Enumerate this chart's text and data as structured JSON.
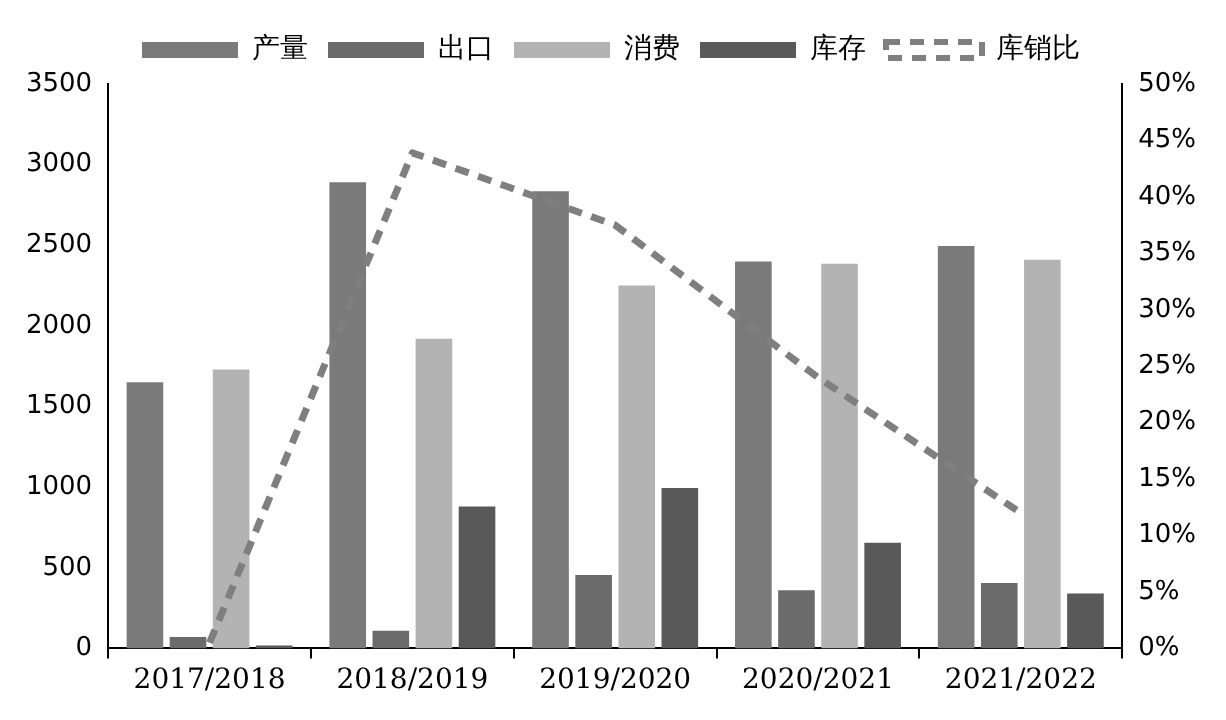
{
  "chart_data": {
    "type": "bar",
    "categories": [
      "2017/2018",
      "2018/2019",
      "2019/2020",
      "2020/2021",
      "2021/2022"
    ],
    "series": [
      {
        "name": "产量",
        "color": "#7a7a7a",
        "values": [
          1650,
          2890,
          2835,
          2400,
          2495
        ]
      },
      {
        "name": "出口",
        "color": "#6b6b6b",
        "values": [
          70,
          110,
          455,
          360,
          405
        ]
      },
      {
        "name": "消费",
        "color": "#b3b3b3",
        "values": [
          1730,
          1920,
          2250,
          2385,
          2410
        ]
      },
      {
        "name": "库存",
        "color": "#595959",
        "values": [
          18,
          880,
          995,
          655,
          340
        ]
      },
      {
        "name": "库销比",
        "type": "line",
        "axis": "y2",
        "color": "#7f7f7f",
        "line_style": "dashed",
        "marker": "none",
        "values": [
          0.5,
          43.9,
          37.5,
          24,
          12
        ]
      }
    ],
    "ylim": [
      0,
      3500
    ],
    "yticks": [
      0,
      500,
      1000,
      1500,
      2000,
      2500,
      3000,
      3500
    ],
    "y2lim": [
      0,
      50
    ],
    "y2ticks": [
      {
        "value": 0,
        "label": "0%"
      },
      {
        "value": 5,
        "label": "5%"
      },
      {
        "value": 10,
        "label": "10%"
      },
      {
        "value": 15,
        "label": "15%"
      },
      {
        "value": 20,
        "label": "20%"
      },
      {
        "value": 25,
        "label": "25%"
      },
      {
        "value": 30,
        "label": "30%"
      },
      {
        "value": 35,
        "label": "35%"
      },
      {
        "value": 40,
        "label": "40%"
      },
      {
        "value": 45,
        "label": "45%"
      },
      {
        "value": 50,
        "label": "50%"
      }
    ],
    "grid": false,
    "legend": "top"
  }
}
